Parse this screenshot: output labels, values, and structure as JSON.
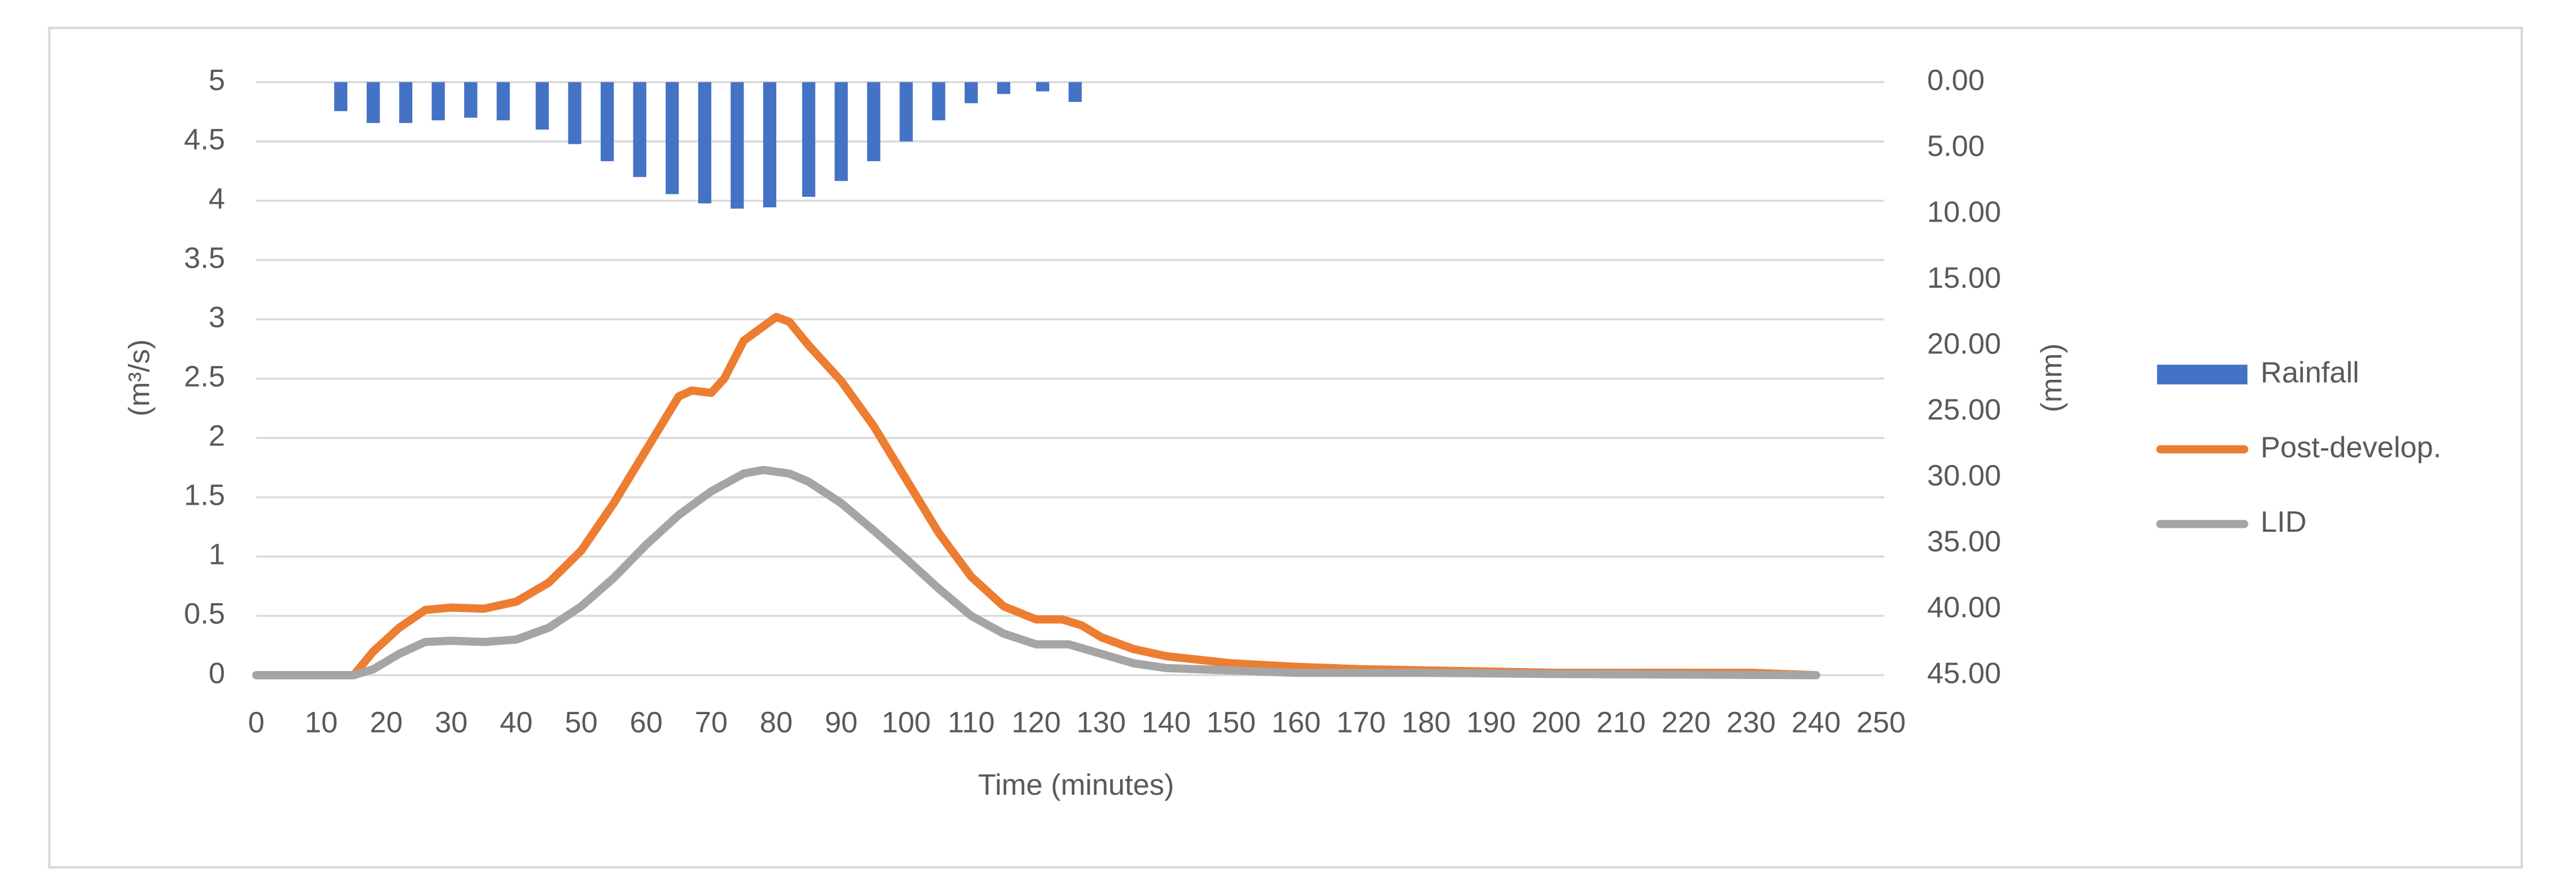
{
  "chart_data": {
    "type": "combo",
    "y_label": "(m³/s)",
    "y2_label": "(mm)",
    "x_label": "Time (minutes)",
    "xlim": [
      0,
      250
    ],
    "xticks": [
      0,
      10,
      20,
      30,
      40,
      50,
      60,
      70,
      80,
      90,
      100,
      110,
      120,
      130,
      140,
      150,
      160,
      170,
      180,
      190,
      200,
      210,
      220,
      230,
      240,
      250
    ],
    "ylim": [
      0,
      5
    ],
    "yticks": [
      0,
      0.5,
      1,
      1.5,
      2,
      2.5,
      3,
      3.5,
      4,
      4.5,
      5
    ],
    "y2lim": [
      45,
      0
    ],
    "y2ticks": [
      {
        "value": 0,
        "label": "0.00"
      },
      {
        "value": 5,
        "label": "5.00"
      },
      {
        "value": 10,
        "label": "10.00"
      },
      {
        "value": 15,
        "label": "15.00"
      },
      {
        "value": 20,
        "label": "20.00"
      },
      {
        "value": 25,
        "label": "25.00"
      },
      {
        "value": 30,
        "label": "30.00"
      },
      {
        "value": 35,
        "label": "35.00"
      },
      {
        "value": 40,
        "label": "40.00"
      },
      {
        "value": 45,
        "label": "45.00"
      }
    ],
    "grid": true,
    "legend": "right",
    "series": [
      {
        "name": "Rainfall",
        "type": "bar",
        "axis": "y2",
        "color": "#4472c4",
        "x": [
          13,
          18,
          23,
          28,
          33,
          38,
          44,
          49,
          54,
          59,
          64,
          69,
          74,
          79,
          85,
          90,
          95,
          100,
          105,
          110,
          115,
          121,
          126
        ],
        "values": [
          2.2,
          3.1,
          3.1,
          2.9,
          2.7,
          2.9,
          3.6,
          4.7,
          6.0,
          7.2,
          8.5,
          9.2,
          9.6,
          9.5,
          8.7,
          7.5,
          6.0,
          4.5,
          2.9,
          1.6,
          0.9,
          0.7,
          1.5
        ]
      },
      {
        "name": "Post-develop.",
        "type": "line",
        "color": "#ed7d31",
        "x": [
          0,
          10,
          15,
          18,
          22,
          26,
          30,
          35,
          40,
          45,
          50,
          55,
          60,
          65,
          67,
          70,
          72,
          75,
          80,
          82,
          85,
          90,
          95,
          100,
          105,
          110,
          115,
          120,
          124,
          127,
          130,
          135,
          140,
          150,
          160,
          170,
          180,
          190,
          200,
          220,
          230,
          240
        ],
        "values": [
          0,
          0,
          0,
          0.2,
          0.4,
          0.55,
          0.57,
          0.56,
          0.62,
          0.78,
          1.05,
          1.45,
          1.9,
          2.35,
          2.4,
          2.38,
          2.5,
          2.82,
          3.02,
          2.98,
          2.78,
          2.48,
          2.1,
          1.65,
          1.2,
          0.83,
          0.58,
          0.47,
          0.47,
          0.42,
          0.32,
          0.22,
          0.16,
          0.1,
          0.07,
          0.05,
          0.04,
          0.03,
          0.02,
          0.02,
          0.02,
          0
        ]
      },
      {
        "name": "LID",
        "type": "line",
        "color": "#a5a5a5",
        "x": [
          0,
          15,
          18,
          22,
          26,
          30,
          35,
          40,
          45,
          50,
          55,
          60,
          65,
          70,
          75,
          78,
          82,
          85,
          90,
          95,
          100,
          105,
          110,
          115,
          120,
          125,
          130,
          135,
          140,
          150,
          160,
          180,
          200,
          240
        ],
        "values": [
          0,
          0,
          0.05,
          0.18,
          0.28,
          0.29,
          0.28,
          0.3,
          0.4,
          0.58,
          0.82,
          1.1,
          1.35,
          1.55,
          1.7,
          1.73,
          1.7,
          1.63,
          1.45,
          1.22,
          0.98,
          0.73,
          0.5,
          0.35,
          0.26,
          0.26,
          0.18,
          0.1,
          0.06,
          0.04,
          0.02,
          0.02,
          0.01,
          0
        ]
      }
    ]
  }
}
